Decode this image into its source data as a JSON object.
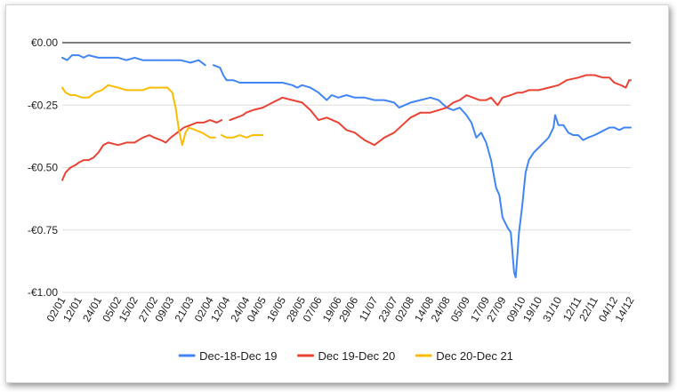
{
  "chart_data": {
    "type": "line",
    "title": "",
    "xlabel": "",
    "ylabel": "",
    "ylim": [
      -1.0,
      0.0
    ],
    "y_ticks": [
      {
        "value": 0.0,
        "label": "€0.00"
      },
      {
        "value": -0.25,
        "label": "-€0.25"
      },
      {
        "value": -0.5,
        "label": "-€0.50"
      },
      {
        "value": -0.75,
        "label": "-€0.75"
      },
      {
        "value": -1.0,
        "label": "-€1.00"
      }
    ],
    "x_start": "02/01",
    "x_end": "14/12",
    "x_ticks": [
      "02/01",
      "12/01",
      "24/01",
      "05/02",
      "15/02",
      "27/02",
      "09/03",
      "21/03",
      "02/04",
      "12/04",
      "24/04",
      "04/05",
      "16/05",
      "28/05",
      "07/06",
      "19/06",
      "29/06",
      "11/07",
      "23/07",
      "02/08",
      "14/08",
      "24/08",
      "05/09",
      "17/09",
      "27/09",
      "09/10",
      "19/10",
      "31/10",
      "12/11",
      "22/11",
      "04/12",
      "14/12"
    ],
    "gridlines": "horizontal",
    "legend_position": "bottom",
    "series": [
      {
        "name": "Dec-18-Dec 19",
        "color": "#4285f4",
        "points": [
          [
            "02/01",
            -0.06
          ],
          [
            "05/01",
            -0.07
          ],
          [
            "08/01",
            -0.05
          ],
          [
            "12/01",
            -0.05
          ],
          [
            "15/01",
            -0.06
          ],
          [
            "18/01",
            -0.05
          ],
          [
            "24/01",
            -0.06
          ],
          [
            "30/01",
            -0.06
          ],
          [
            "05/02",
            -0.06
          ],
          [
            "10/02",
            -0.07
          ],
          [
            "15/02",
            -0.06
          ],
          [
            "20/02",
            -0.07
          ],
          [
            "27/02",
            -0.07
          ],
          [
            "04/03",
            -0.07
          ],
          [
            "09/03",
            -0.07
          ],
          [
            "15/03",
            -0.07
          ],
          [
            "21/03",
            -0.08
          ],
          [
            "26/03",
            -0.07
          ],
          [
            "30/03",
            -0.09
          ],
          null,
          [
            "04/04",
            -0.09
          ],
          [
            "08/04",
            -0.1
          ],
          [
            "10/04",
            -0.13
          ],
          [
            "12/04",
            -0.15
          ],
          [
            "16/04",
            -0.15
          ],
          [
            "20/04",
            -0.16
          ],
          [
            "24/04",
            -0.16
          ],
          [
            "30/04",
            -0.16
          ],
          [
            "04/05",
            -0.16
          ],
          [
            "10/05",
            -0.16
          ],
          [
            "16/05",
            -0.16
          ],
          [
            "22/05",
            -0.17
          ],
          [
            "25/05",
            -0.18
          ],
          [
            "28/05",
            -0.17
          ],
          [
            "02/06",
            -0.18
          ],
          [
            "07/06",
            -0.2
          ],
          [
            "12/06",
            -0.23
          ],
          [
            "15/06",
            -0.21
          ],
          [
            "19/06",
            -0.22
          ],
          [
            "24/06",
            -0.21
          ],
          [
            "29/06",
            -0.22
          ],
          [
            "05/07",
            -0.22
          ],
          [
            "11/07",
            -0.23
          ],
          [
            "17/07",
            -0.23
          ],
          [
            "23/07",
            -0.24
          ],
          [
            "26/07",
            -0.26
          ],
          [
            "02/08",
            -0.24
          ],
          [
            "08/08",
            -0.23
          ],
          [
            "14/08",
            -0.22
          ],
          [
            "19/08",
            -0.23
          ],
          [
            "24/08",
            -0.26
          ],
          [
            "28/08",
            -0.27
          ],
          [
            "01/09",
            -0.26
          ],
          [
            "05/09",
            -0.29
          ],
          [
            "08/09",
            -0.32
          ],
          [
            "11/09",
            -0.38
          ],
          [
            "14/09",
            -0.36
          ],
          [
            "17/09",
            -0.4
          ],
          [
            "20/09",
            -0.47
          ],
          [
            "23/09",
            -0.58
          ],
          [
            "25/09",
            -0.61
          ],
          [
            "27/09",
            -0.7
          ],
          [
            "30/09",
            -0.74
          ],
          [
            "02/10",
            -0.76
          ],
          [
            "04/10",
            -0.92
          ],
          [
            "05/10",
            -0.94
          ],
          [
            "06/10",
            -0.85
          ],
          [
            "07/10",
            -0.76
          ],
          [
            "09/10",
            -0.65
          ],
          [
            "11/10",
            -0.52
          ],
          [
            "13/10",
            -0.47
          ],
          [
            "16/10",
            -0.44
          ],
          [
            "19/10",
            -0.42
          ],
          [
            "22/10",
            -0.4
          ],
          [
            "25/10",
            -0.38
          ],
          [
            "28/10",
            -0.34
          ],
          [
            "29/10",
            -0.29
          ],
          [
            "31/10",
            -0.33
          ],
          [
            "03/11",
            -0.33
          ],
          [
            "06/11",
            -0.36
          ],
          [
            "09/11",
            -0.37
          ],
          [
            "12/11",
            -0.37
          ],
          [
            "15/11",
            -0.39
          ],
          [
            "18/11",
            -0.38
          ],
          [
            "22/11",
            -0.37
          ],
          [
            "25/11",
            -0.36
          ],
          [
            "28/11",
            -0.35
          ],
          [
            "01/12",
            -0.34
          ],
          [
            "04/12",
            -0.34
          ],
          [
            "07/12",
            -0.35
          ],
          [
            "10/12",
            -0.34
          ],
          [
            "14/12",
            -0.34
          ]
        ]
      },
      {
        "name": "Dec 19-Dec 20",
        "color": "#ea4335",
        "points": [
          [
            "02/01",
            -0.55
          ],
          [
            "04/01",
            -0.52
          ],
          [
            "07/01",
            -0.5
          ],
          [
            "10/01",
            -0.49
          ],
          [
            "12/01",
            -0.48
          ],
          [
            "15/01",
            -0.47
          ],
          [
            "18/01",
            -0.47
          ],
          [
            "21/01",
            -0.46
          ],
          [
            "24/01",
            -0.44
          ],
          [
            "27/01",
            -0.41
          ],
          [
            "30/01",
            -0.4
          ],
          [
            "05/02",
            -0.41
          ],
          [
            "10/02",
            -0.4
          ],
          [
            "15/02",
            -0.4
          ],
          [
            "20/02",
            -0.38
          ],
          [
            "24/02",
            -0.37
          ],
          [
            "27/02",
            -0.38
          ],
          [
            "03/03",
            -0.39
          ],
          [
            "06/03",
            -0.4
          ],
          [
            "09/03",
            -0.38
          ],
          [
            "13/03",
            -0.36
          ],
          [
            "17/03",
            -0.34
          ],
          [
            "21/03",
            -0.33
          ],
          [
            "25/03",
            -0.32
          ],
          [
            "29/03",
            -0.32
          ],
          [
            "02/04",
            -0.31
          ],
          [
            "06/04",
            -0.32
          ],
          [
            "09/04",
            -0.31
          ],
          null,
          [
            "14/04",
            -0.31
          ],
          [
            "18/04",
            -0.3
          ],
          [
            "22/04",
            -0.29
          ],
          [
            "24/04",
            -0.28
          ],
          [
            "28/04",
            -0.27
          ],
          [
            "04/05",
            -0.26
          ],
          [
            "10/05",
            -0.24
          ],
          [
            "16/05",
            -0.22
          ],
          [
            "22/05",
            -0.23
          ],
          [
            "28/05",
            -0.24
          ],
          [
            "02/06",
            -0.27
          ],
          [
            "07/06",
            -0.31
          ],
          [
            "12/06",
            -0.3
          ],
          [
            "19/06",
            -0.32
          ],
          [
            "24/06",
            -0.35
          ],
          [
            "29/06",
            -0.36
          ],
          [
            "05/07",
            -0.39
          ],
          [
            "11/07",
            -0.41
          ],
          [
            "17/07",
            -0.38
          ],
          [
            "23/07",
            -0.36
          ],
          [
            "28/07",
            -0.33
          ],
          [
            "02/08",
            -0.3
          ],
          [
            "08/08",
            -0.28
          ],
          [
            "14/08",
            -0.28
          ],
          [
            "19/08",
            -0.27
          ],
          [
            "24/08",
            -0.26
          ],
          [
            "28/08",
            -0.24
          ],
          [
            "01/09",
            -0.23
          ],
          [
            "05/09",
            -0.21
          ],
          [
            "09/09",
            -0.22
          ],
          [
            "13/09",
            -0.23
          ],
          [
            "17/09",
            -0.23
          ],
          [
            "20/09",
            -0.22
          ],
          [
            "24/09",
            -0.25
          ],
          [
            "27/09",
            -0.22
          ],
          [
            "02/10",
            -0.21
          ],
          [
            "06/10",
            -0.2
          ],
          [
            "09/10",
            -0.2
          ],
          [
            "13/10",
            -0.19
          ],
          [
            "19/10",
            -0.19
          ],
          [
            "25/10",
            -0.18
          ],
          [
            "31/10",
            -0.17
          ],
          [
            "05/11",
            -0.15
          ],
          [
            "12/11",
            -0.14
          ],
          [
            "17/11",
            -0.13
          ],
          [
            "22/11",
            -0.13
          ],
          [
            "27/11",
            -0.14
          ],
          [
            "01/12",
            -0.14
          ],
          [
            "04/12",
            -0.16
          ],
          [
            "08/12",
            -0.17
          ],
          [
            "11/12",
            -0.18
          ],
          [
            "13/12",
            -0.15
          ],
          [
            "14/12",
            -0.15
          ]
        ]
      },
      {
        "name": "Dec 20-Dec 21",
        "color": "#fbbc04",
        "points": [
          [
            "02/01",
            -0.18
          ],
          [
            "04/01",
            -0.2
          ],
          [
            "07/01",
            -0.21
          ],
          [
            "10/01",
            -0.21
          ],
          [
            "14/01",
            -0.22
          ],
          [
            "18/01",
            -0.22
          ],
          [
            "22/01",
            -0.2
          ],
          [
            "26/01",
            -0.19
          ],
          [
            "30/01",
            -0.17
          ],
          [
            "05/02",
            -0.18
          ],
          [
            "10/02",
            -0.19
          ],
          [
            "15/02",
            -0.19
          ],
          [
            "20/02",
            -0.19
          ],
          [
            "24/02",
            -0.18
          ],
          [
            "27/02",
            -0.18
          ],
          [
            "03/03",
            -0.18
          ],
          [
            "07/03",
            -0.18
          ],
          [
            "10/03",
            -0.2
          ],
          [
            "12/03",
            -0.26
          ],
          [
            "14/03",
            -0.35
          ],
          [
            "16/03",
            -0.41
          ],
          [
            "18/03",
            -0.36
          ],
          [
            "20/03",
            -0.34
          ],
          [
            "24/03",
            -0.35
          ],
          [
            "28/03",
            -0.36
          ],
          [
            "02/04",
            -0.38
          ],
          [
            "05/04",
            -0.38
          ],
          null,
          [
            "09/04",
            -0.37
          ],
          [
            "12/04",
            -0.38
          ],
          [
            "16/04",
            -0.38
          ],
          [
            "20/04",
            -0.37
          ],
          [
            "24/04",
            -0.38
          ],
          [
            "28/04",
            -0.37
          ],
          [
            "02/05",
            -0.37
          ],
          [
            "04/05",
            -0.37
          ]
        ]
      }
    ]
  }
}
